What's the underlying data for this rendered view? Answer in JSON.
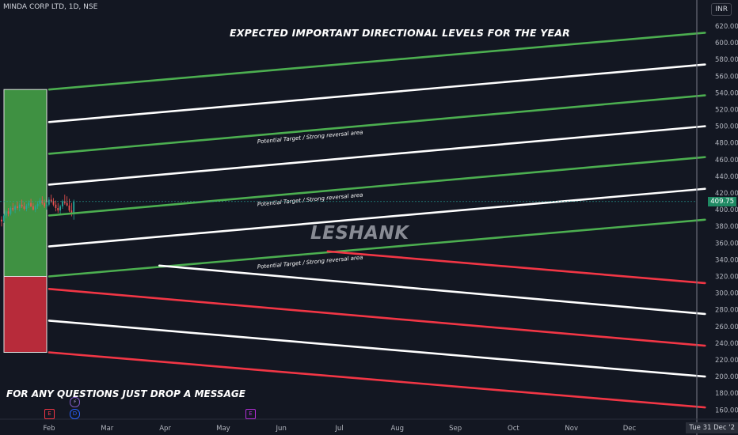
{
  "symbol_line": "MINDA CORP LTD, 1D, NSE",
  "currency": "INR",
  "title": "EXPECTED IMPORTANT DIRECTIONAL LEVELS FOR THE YEAR",
  "footer": "FOR ANY QUESTIONS JUST DROP A MESSAGE",
  "watermark": "LESHANK",
  "price_tag": "409.75",
  "date_tag": "Tue 31 Dec '2",
  "annotation_text": "Potential Target / Strong reversal area",
  "events": {
    "e1": "E",
    "d": "D",
    "s": "⚡",
    "e2": "E"
  },
  "colors": {
    "green": "#4caf50",
    "white": "#ffffff",
    "red": "#f23645",
    "bg": "#131722"
  },
  "chart_data": {
    "type": "line",
    "x_axis": {
      "labels": [
        "Feb",
        "Mar",
        "Apr",
        "May",
        "Jun",
        "Jul",
        "Aug",
        "Sep",
        "Oct",
        "Nov",
        "Dec"
      ]
    },
    "y_axis": {
      "ticks": [
        620,
        600,
        580,
        560,
        540,
        520,
        500,
        480,
        460,
        440,
        420,
        400,
        380,
        360,
        340,
        320,
        300,
        280,
        260,
        240,
        220,
        200,
        180,
        160
      ],
      "range": [
        150,
        640
      ]
    },
    "last_price": 409.75,
    "boxes": [
      {
        "color": "green",
        "from": 320,
        "to": 544
      },
      {
        "color": "red",
        "from": 229,
        "to": 320
      }
    ],
    "levels": [
      {
        "color": "green",
        "start": {
          "month": 0,
          "price": 544
        },
        "end": {
          "month": 11.3,
          "price": 612
        }
      },
      {
        "color": "white",
        "start": {
          "month": 0,
          "price": 505
        },
        "end": {
          "month": 11.3,
          "price": 574
        }
      },
      {
        "color": "green",
        "start": {
          "month": 0,
          "price": 467
        },
        "end": {
          "month": 11.3,
          "price": 537
        }
      },
      {
        "color": "white",
        "start": {
          "month": 0,
          "price": 430
        },
        "end": {
          "month": 11.3,
          "price": 500
        }
      },
      {
        "color": "green",
        "start": {
          "month": 0,
          "price": 393
        },
        "end": {
          "month": 11.3,
          "price": 463
        }
      },
      {
        "color": "white",
        "start": {
          "month": 0,
          "price": 356
        },
        "end": {
          "month": 11.3,
          "price": 425
        }
      },
      {
        "color": "green",
        "start": {
          "month": 0,
          "price": 320
        },
        "end": {
          "month": 11.3,
          "price": 388
        }
      },
      {
        "color": "red",
        "start": {
          "month": 4.8,
          "price": 350
        },
        "end": {
          "month": 11.3,
          "price": 312
        }
      },
      {
        "color": "white",
        "start": {
          "month": 1.9,
          "price": 333
        },
        "end": {
          "month": 11.3,
          "price": 275
        }
      },
      {
        "color": "red",
        "start": {
          "month": 0,
          "price": 305
        },
        "end": {
          "month": 11.3,
          "price": 237
        }
      },
      {
        "color": "white",
        "start": {
          "month": 0,
          "price": 267
        },
        "end": {
          "month": 11.3,
          "price": 200
        }
      },
      {
        "color": "red",
        "start": {
          "month": 0,
          "price": 229
        },
        "end": {
          "month": 11.3,
          "price": 163
        }
      }
    ],
    "annotations": [
      {
        "month": 4.5,
        "price": 485
      },
      {
        "month": 4.5,
        "price": 410
      },
      {
        "month": 4.5,
        "price": 335
      }
    ],
    "candles": [
      {
        "o": 388,
        "h": 392,
        "l": 380,
        "c": 386
      },
      {
        "o": 386,
        "h": 395,
        "l": 384,
        "c": 393
      },
      {
        "o": 393,
        "h": 400,
        "l": 390,
        "c": 398
      },
      {
        "o": 398,
        "h": 402,
        "l": 392,
        "c": 395
      },
      {
        "o": 395,
        "h": 404,
        "l": 393,
        "c": 402
      },
      {
        "o": 402,
        "h": 408,
        "l": 398,
        "c": 400
      },
      {
        "o": 400,
        "h": 406,
        "l": 396,
        "c": 404
      },
      {
        "o": 404,
        "h": 410,
        "l": 400,
        "c": 402
      },
      {
        "o": 402,
        "h": 408,
        "l": 398,
        "c": 406
      },
      {
        "o": 406,
        "h": 412,
        "l": 402,
        "c": 404
      },
      {
        "o": 404,
        "h": 409,
        "l": 399,
        "c": 401
      },
      {
        "o": 401,
        "h": 407,
        "l": 398,
        "c": 405
      },
      {
        "o": 405,
        "h": 411,
        "l": 402,
        "c": 408
      },
      {
        "o": 408,
        "h": 413,
        "l": 403,
        "c": 404
      },
      {
        "o": 404,
        "h": 408,
        "l": 399,
        "c": 400
      },
      {
        "o": 400,
        "h": 406,
        "l": 397,
        "c": 404
      },
      {
        "o": 404,
        "h": 410,
        "l": 401,
        "c": 407
      },
      {
        "o": 407,
        "h": 414,
        "l": 404,
        "c": 411
      },
      {
        "o": 411,
        "h": 416,
        "l": 406,
        "c": 408
      },
      {
        "o": 408,
        "h": 412,
        "l": 402,
        "c": 404
      },
      {
        "o": 404,
        "h": 409,
        "l": 400,
        "c": 406
      },
      {
        "o": 406,
        "h": 415,
        "l": 404,
        "c": 412
      },
      {
        "o": 412,
        "h": 418,
        "l": 408,
        "c": 410
      },
      {
        "o": 410,
        "h": 414,
        "l": 404,
        "c": 406
      },
      {
        "o": 406,
        "h": 411,
        "l": 398,
        "c": 402
      },
      {
        "o": 402,
        "h": 408,
        "l": 396,
        "c": 399
      },
      {
        "o": 399,
        "h": 406,
        "l": 394,
        "c": 404
      },
      {
        "o": 404,
        "h": 412,
        "l": 401,
        "c": 410
      },
      {
        "o": 410,
        "h": 418,
        "l": 406,
        "c": 408
      },
      {
        "o": 408,
        "h": 416,
        "l": 404,
        "c": 405
      },
      {
        "o": 405,
        "h": 413,
        "l": 397,
        "c": 399
      },
      {
        "o": 399,
        "h": 408,
        "l": 392,
        "c": 396
      },
      {
        "o": 396,
        "h": 412,
        "l": 388,
        "c": 409.75
      }
    ]
  }
}
